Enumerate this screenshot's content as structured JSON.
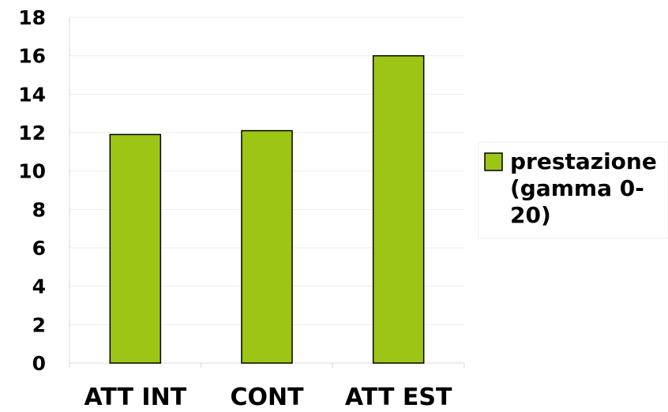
{
  "chart_data": {
    "type": "bar",
    "categories": [
      "ATT INT",
      "CONT",
      "ATT EST"
    ],
    "series": [
      {
        "name": "prestazione (gamma 0-20)",
        "legend_lines": [
          "prestazione",
          "(gamma 0-",
          "20)"
        ],
        "values": [
          11.9,
          12.1,
          16.0
        ],
        "color": "#9dc515"
      }
    ],
    "ylim": [
      0,
      18
    ],
    "yticks": [
      0,
      2,
      4,
      6,
      8,
      10,
      12,
      14,
      16,
      18
    ],
    "grid": true,
    "legend_position": "right",
    "title": "",
    "xlabel": "",
    "ylabel": ""
  }
}
